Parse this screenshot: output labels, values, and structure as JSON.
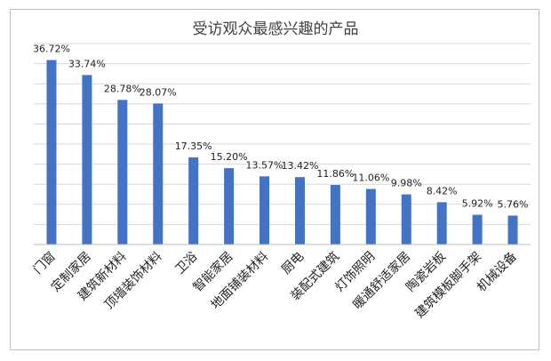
{
  "chart_data": {
    "type": "bar",
    "title": "受访观众最感兴趣的产品",
    "categories": [
      "门窗",
      "定制家居",
      "建筑新材料",
      "顶墙装饰材料",
      "卫浴",
      "智能家居",
      "地面铺装材料",
      "厨电",
      "装配式建筑",
      "灯饰照明",
      "暖通舒适家居",
      "陶瓷岩板",
      "建筑模板脚手架",
      "机械设备"
    ],
    "values": [
      36.72,
      33.74,
      28.78,
      28.07,
      17.35,
      15.2,
      13.57,
      13.42,
      11.86,
      11.06,
      9.98,
      8.42,
      5.92,
      5.76
    ],
    "labels": [
      "36.72%",
      "33.74%",
      "28.78%",
      "28.07%",
      "17.35%",
      "15.20%",
      "13.57%",
      "13.42%",
      "11.86%",
      "11.06%",
      "9.98%",
      "8.42%",
      "5.92%",
      "5.76%"
    ],
    "ylim": [
      0,
      40
    ],
    "grid": true,
    "bar_color": "#4472c4",
    "grid_color": "#d9d9d9",
    "legend": false
  }
}
